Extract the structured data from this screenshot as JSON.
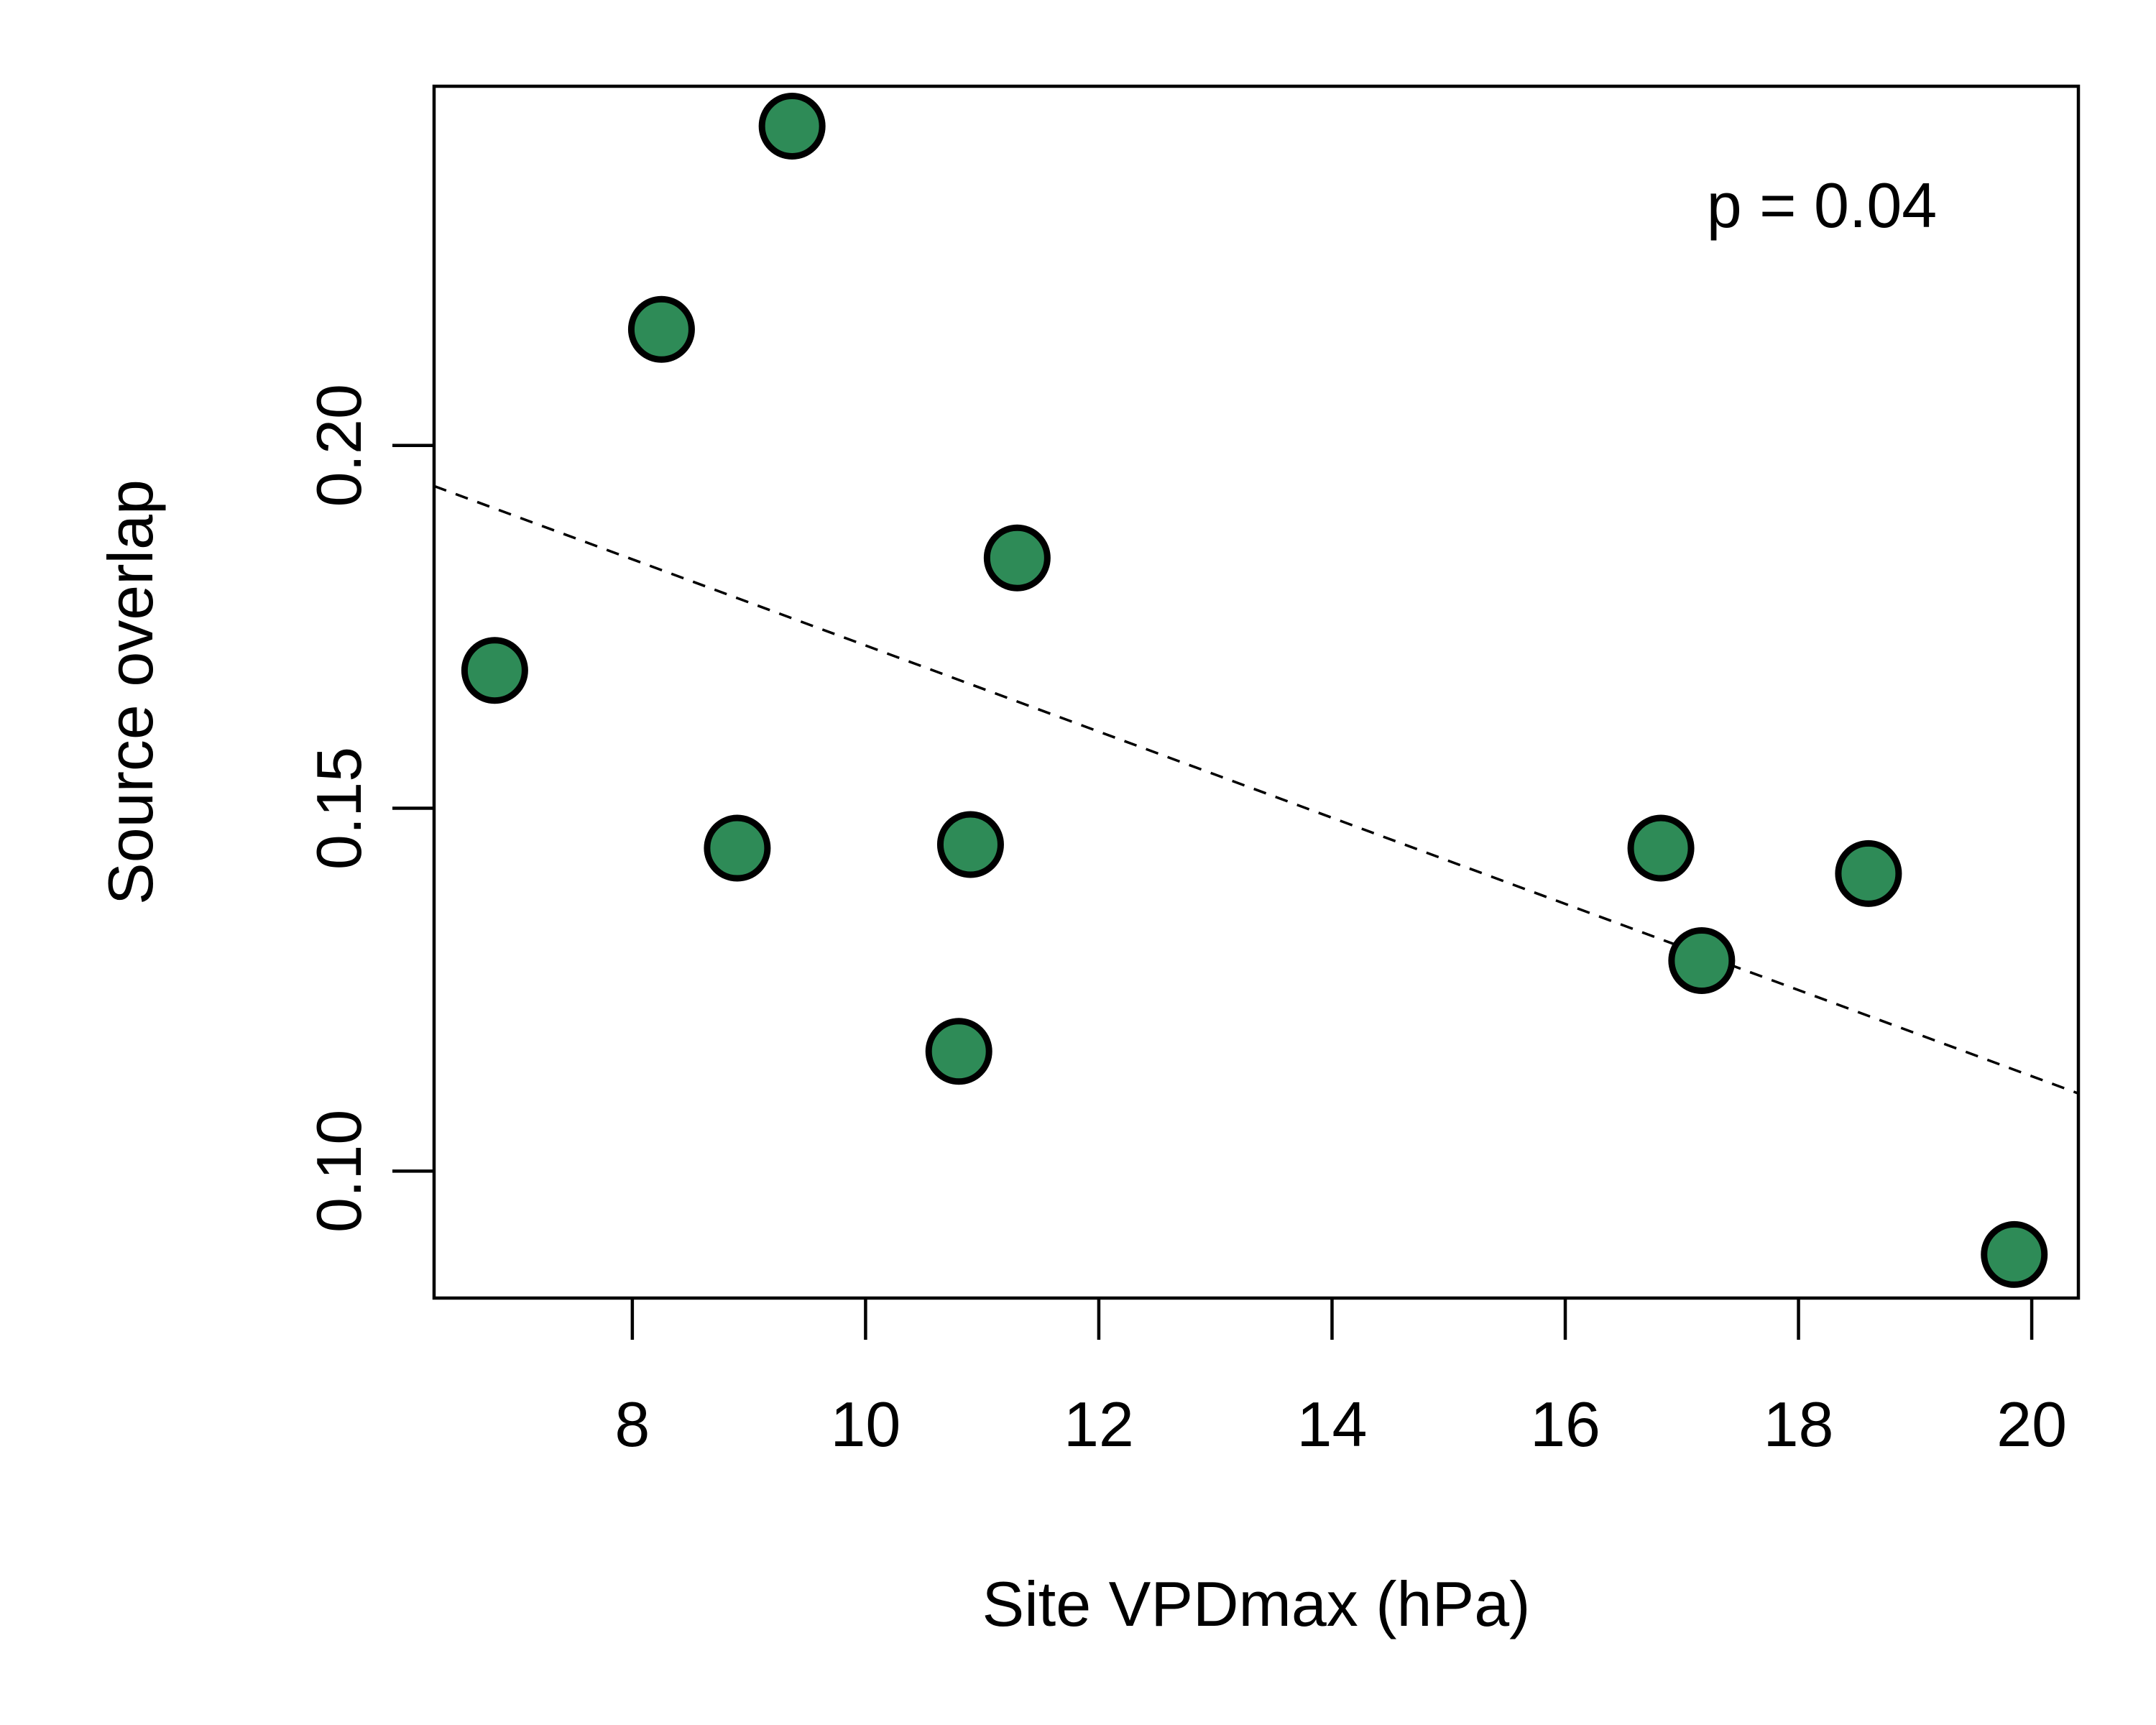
{
  "chart_data": {
    "type": "scatter",
    "xlabel": "Site VPDmax (hPa)",
    "ylabel": "Source overlap",
    "annotation": "p = 0.04",
    "xlim": [
      6.3,
      20.4
    ],
    "ylim": [
      0.0825,
      0.2495
    ],
    "x_ticks": [
      8,
      10,
      12,
      14,
      16,
      18,
      20
    ],
    "y_ticks": [
      0.1,
      0.15,
      0.2
    ],
    "x_tick_labels": [
      "8",
      "10",
      "12",
      "14",
      "16",
      "18",
      "20"
    ],
    "y_tick_labels": [
      "0.10",
      "0.15",
      "0.20"
    ],
    "grid": false,
    "series": [
      {
        "points": [
          {
            "x": 6.82,
            "y": 0.169
          },
          {
            "x": 8.25,
            "y": 0.216
          },
          {
            "x": 8.9,
            "y": 0.1445
          },
          {
            "x": 9.37,
            "y": 0.244
          },
          {
            "x": 10.8,
            "y": 0.1165
          },
          {
            "x": 10.9,
            "y": 0.145
          },
          {
            "x": 11.3,
            "y": 0.1845
          },
          {
            "x": 16.82,
            "y": 0.1445
          },
          {
            "x": 17.17,
            "y": 0.129
          },
          {
            "x": 18.6,
            "y": 0.141
          },
          {
            "x": 19.85,
            "y": 0.0885
          }
        ]
      }
    ],
    "trendline": {
      "style": "dashed",
      "x": [
        6.3,
        20.4
      ],
      "y": [
        0.1944,
        0.1107
      ]
    },
    "colors": {
      "marker_fill": "#2E8B57",
      "marker_edge": "#000000",
      "line": "#000000"
    }
  }
}
